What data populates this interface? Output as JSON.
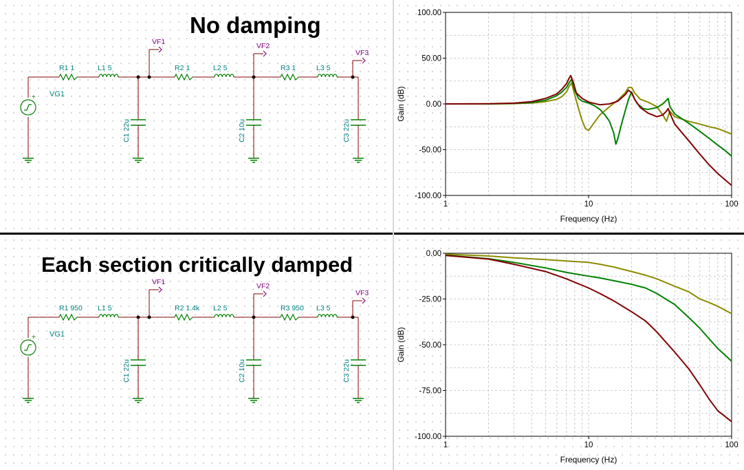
{
  "top": {
    "title": "No damping",
    "schematic": {
      "source": "VG1",
      "components": {
        "r1": "R1 1",
        "l1": "L1 5",
        "c1": "C1 22u",
        "r2": "R2 1",
        "l2": "L2 5",
        "c2": "C2 10u",
        "r3": "R3 1",
        "l3": "L3 5",
        "c3": "C3 22u"
      },
      "probes": [
        "VF1",
        "VF2",
        "VF3"
      ]
    }
  },
  "bottom": {
    "title": "Each section critically damped",
    "schematic": {
      "source": "VG1",
      "components": {
        "r1": "R1 950",
        "l1": "L1 5",
        "c1": "C1 22u",
        "r2": "R2 1.4k",
        "l2": "L2 5",
        "c2": "C2 10u",
        "r3": "R3 950",
        "l3": "L3 5",
        "c3": "C3 22u"
      },
      "probes": [
        "VF1",
        "VF2",
        "VF3"
      ]
    }
  },
  "colors": {
    "vf1": "#8b8b00",
    "vf2": "#008000",
    "vf3": "#800000",
    "schematic": "#008080",
    "probe": "#800080",
    "wire": "#800000"
  },
  "chart_data": [
    {
      "type": "line",
      "title": "",
      "xlabel": "Frequency (Hz)",
      "ylabel": "Gain (dB)",
      "xscale": "log",
      "xlim": [
        1,
        100
      ],
      "ylim": [
        -100,
        100
      ],
      "xticks": [
        "1",
        "10",
        "100"
      ],
      "yticks": [
        "100.00",
        "50.00",
        "0.00",
        "-50.00",
        "-100.00"
      ],
      "grid": true,
      "series": [
        {
          "color": "#8b8b00",
          "x": [
            1,
            2,
            3,
            4,
            5,
            6,
            6.5,
            7,
            7.3,
            7.6,
            8,
            8.5,
            9,
            9.5,
            10,
            11,
            12,
            14,
            16,
            18,
            19,
            20,
            21,
            23,
            26,
            30,
            33,
            35,
            37,
            40,
            50,
            60,
            70,
            80,
            90,
            100
          ],
          "y": [
            0,
            0,
            0.3,
            1,
            2.5,
            5,
            8,
            13,
            19,
            23,
            10,
            -5,
            -18,
            -27,
            -29,
            -20,
            -12,
            -3,
            4,
            12,
            18,
            18,
            12,
            5,
            2,
            -3,
            -12,
            -19,
            -8,
            -14,
            -19,
            -22,
            -25,
            -27,
            -30,
            -33
          ]
        },
        {
          "color": "#008000",
          "x": [
            1,
            2,
            3,
            4,
            5,
            6,
            6.5,
            7,
            7.3,
            7.6,
            8,
            8.5,
            9,
            10,
            11,
            12,
            13,
            14,
            15,
            15.5,
            16,
            17,
            18,
            19,
            20,
            21,
            22,
            24,
            26,
            30,
            33,
            35,
            36,
            37,
            40,
            50,
            60,
            70,
            80,
            90,
            100
          ],
          "y": [
            0,
            0,
            0.5,
            1.5,
            4,
            9,
            13,
            18,
            23,
            27,
            15,
            6,
            3,
            1,
            -2,
            -6,
            -12,
            -19,
            -32,
            -44,
            -38,
            -22,
            -8,
            5,
            13,
            5,
            0,
            -5,
            -6,
            -4,
            0,
            4,
            6,
            -3,
            -11,
            -21,
            -30,
            -38,
            -45,
            -51,
            -57
          ]
        },
        {
          "color": "#800000",
          "x": [
            1,
            2,
            3,
            4,
            5,
            6,
            6.5,
            7,
            7.3,
            7.5,
            7.8,
            8.2,
            9,
            10,
            12,
            14,
            16,
            18,
            19,
            20,
            21,
            23,
            26,
            30,
            33,
            35,
            36,
            37,
            40,
            50,
            60,
            70,
            80,
            90,
            100
          ],
          "y": [
            0,
            0.2,
            0.8,
            2.5,
            6,
            11,
            16,
            22,
            28,
            31,
            24,
            12,
            6,
            2,
            -1,
            0,
            3,
            10,
            15,
            12,
            5,
            -4,
            -10,
            -14,
            -12,
            -8,
            -5,
            -10,
            -22,
            -40,
            -55,
            -67,
            -76,
            -83,
            -89
          ]
        }
      ]
    },
    {
      "type": "line",
      "title": "",
      "xlabel": "Frequency (Hz)",
      "ylabel": "Gain (dB)",
      "xscale": "log",
      "xlim": [
        1,
        100
      ],
      "ylim": [
        -100,
        0
      ],
      "xticks": [
        "1",
        "10",
        "100"
      ],
      "yticks": [
        "0.00",
        "-25.00",
        "-50.00",
        "-75.00",
        "-100.00"
      ],
      "grid": true,
      "series": [
        {
          "color": "#8b8b00",
          "x": [
            1,
            2,
            3,
            5,
            7,
            10,
            12,
            15,
            20,
            25,
            30,
            40,
            50,
            60,
            70,
            80,
            100
          ],
          "y": [
            -0.5,
            -1.5,
            -2.5,
            -3.5,
            -4.2,
            -5,
            -6,
            -7.5,
            -10,
            -12,
            -14,
            -18,
            -21,
            -25,
            -27,
            -29,
            -33
          ]
        },
        {
          "color": "#008000",
          "x": [
            1,
            2,
            3,
            5,
            7,
            10,
            12,
            15,
            20,
            25,
            30,
            40,
            50,
            60,
            70,
            80,
            100
          ],
          "y": [
            -1,
            -3,
            -5,
            -8,
            -10.5,
            -12.5,
            -13.5,
            -15,
            -17,
            -19,
            -22,
            -28,
            -35,
            -41,
            -47,
            -52,
            -59
          ]
        },
        {
          "color": "#800000",
          "x": [
            1,
            2,
            3,
            5,
            7,
            10,
            12,
            15,
            20,
            25,
            30,
            40,
            50,
            60,
            70,
            80,
            100
          ],
          "y": [
            -1.2,
            -3.2,
            -6,
            -10,
            -14,
            -19,
            -22,
            -26,
            -32,
            -37,
            -43,
            -54,
            -63,
            -72,
            -80,
            -86,
            -92
          ]
        }
      ]
    }
  ]
}
